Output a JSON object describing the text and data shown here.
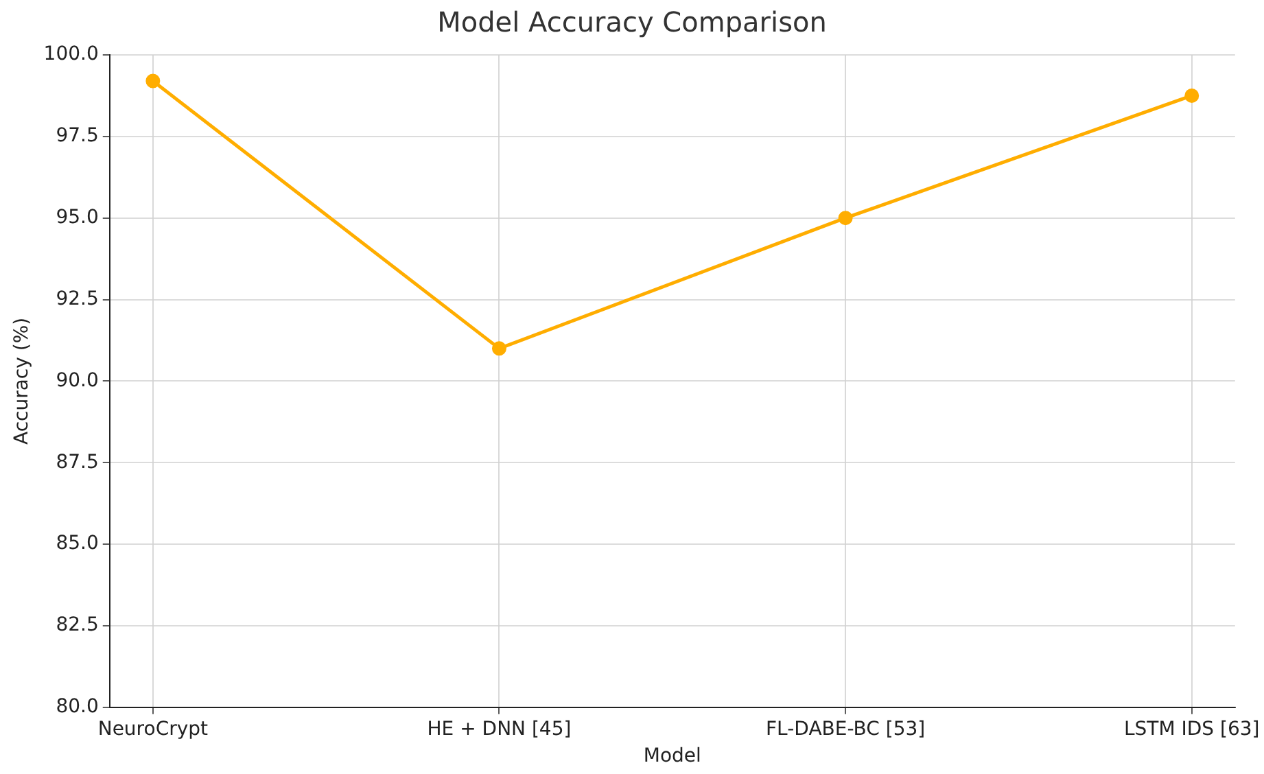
{
  "chart_data": {
    "type": "line",
    "title": "Model Accuracy Comparison",
    "xlabel": "Model",
    "ylabel": "Accuracy (%)",
    "categories": [
      "NeuroCrypt",
      "HE + DNN [45]",
      "FL-DABE-BC [53]",
      "LSTM IDS [63]"
    ],
    "series": [
      {
        "color": "#ffad00",
        "values": [
          99.2,
          91.0,
          95.0,
          98.75
        ]
      }
    ],
    "ylim": [
      80,
      100
    ],
    "yticks": [
      {
        "value": 80,
        "label": "80.0"
      },
      {
        "value": 82.5,
        "label": "82.5"
      },
      {
        "value": 85,
        "label": "85.0"
      },
      {
        "value": 87.5,
        "label": "87.5"
      },
      {
        "value": 90,
        "label": "90.0"
      },
      {
        "value": 92.5,
        "label": "92.5"
      },
      {
        "value": 95,
        "label": "95.0"
      },
      {
        "value": 97.5,
        "label": "97.5"
      },
      {
        "value": 100,
        "label": "100.0"
      }
    ],
    "grid": true,
    "marker": "circle",
    "line_style": "solid",
    "legend": false
  }
}
